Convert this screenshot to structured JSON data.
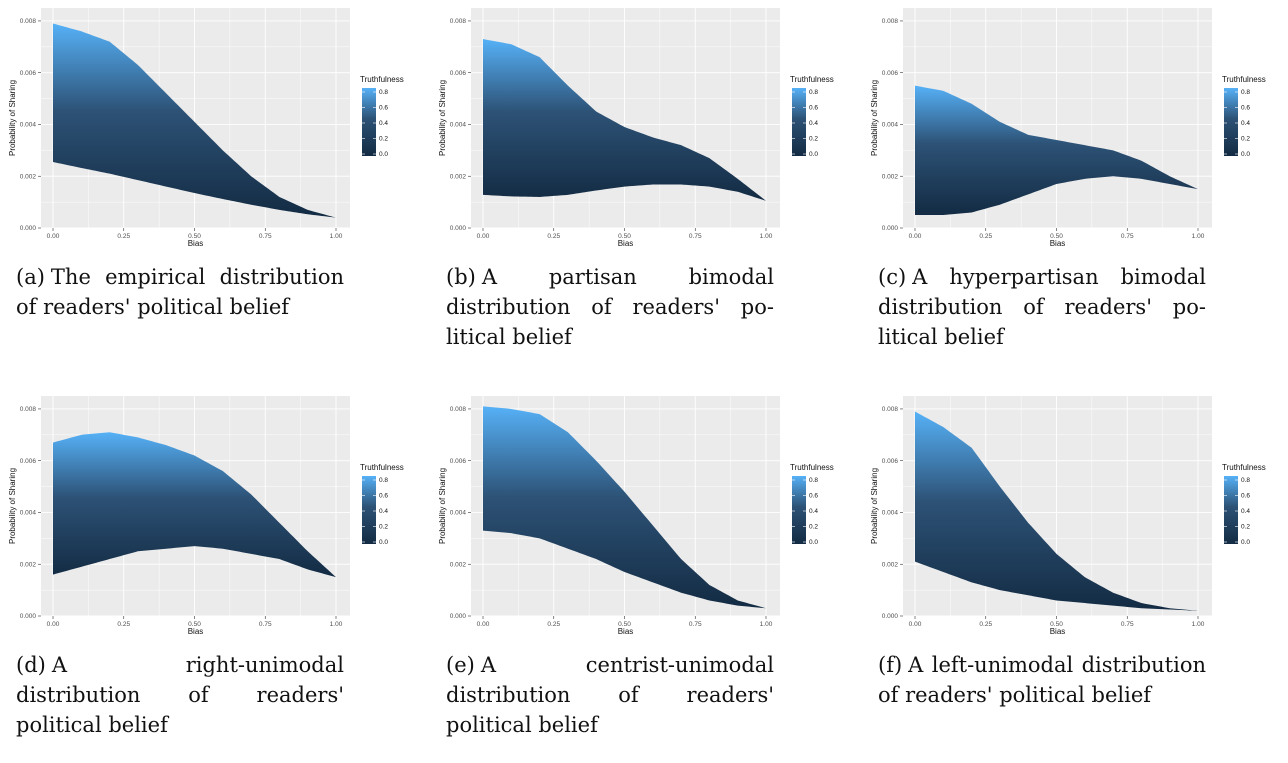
{
  "chart_data": [
    {
      "type": "area",
      "panel_label": "(a)",
      "caption": "The empirical distribution of readers' political belief",
      "xlabel": "Bias",
      "ylabel": "Probability of Sharing",
      "xlim": [
        0,
        1
      ],
      "ylim": [
        0,
        0.0085
      ],
      "x_ticks": [
        "0.00",
        "0.25",
        "0.50",
        "0.75",
        "1.00"
      ],
      "y_ticks": [
        "0.000",
        "0.002",
        "0.004",
        "0.006",
        "0.008"
      ],
      "x": [
        0,
        0.1,
        0.2,
        0.3,
        0.4,
        0.5,
        0.6,
        0.7,
        0.8,
        0.9,
        1.0
      ],
      "upper": [
        0.0079,
        0.0076,
        0.0072,
        0.0063,
        0.0052,
        0.0041,
        0.003,
        0.002,
        0.0012,
        0.0007,
        0.0004
      ],
      "lower": [
        0.00255,
        0.00232,
        0.0021,
        0.00185,
        0.0016,
        0.00135,
        0.00112,
        0.0009,
        0.0007,
        0.00053,
        0.0004
      ],
      "legend": {
        "title": "Truthfulness",
        "ticks": [
          "0.0",
          "0.2",
          "0.4",
          "0.6",
          "0.8"
        ],
        "position": "right"
      },
      "grid": true
    },
    {
      "type": "area",
      "panel_label": "(b)",
      "caption": "A partisan bimodal distribution of readers' po-litical belief",
      "xlabel": "Bias",
      "ylabel": "Probability of Sharing",
      "xlim": [
        0,
        1
      ],
      "ylim": [
        0,
        0.0085
      ],
      "x_ticks": [
        "0.00",
        "0.25",
        "0.50",
        "0.75",
        "1.00"
      ],
      "y_ticks": [
        "0.000",
        "0.002",
        "0.004",
        "0.006",
        "0.008"
      ],
      "x": [
        0,
        0.1,
        0.2,
        0.3,
        0.4,
        0.5,
        0.6,
        0.7,
        0.8,
        0.9,
        1.0
      ],
      "upper": [
        0.0073,
        0.0071,
        0.0066,
        0.0055,
        0.0045,
        0.0039,
        0.0035,
        0.0032,
        0.0027,
        0.0019,
        0.00105
      ],
      "lower": [
        0.00128,
        0.00122,
        0.0012,
        0.00128,
        0.00145,
        0.0016,
        0.00168,
        0.00168,
        0.0016,
        0.0014,
        0.00105
      ],
      "legend": {
        "title": "Truthfulness",
        "ticks": [
          "0.0",
          "0.2",
          "0.4",
          "0.6",
          "0.8"
        ],
        "position": "right"
      },
      "grid": true
    },
    {
      "type": "area",
      "panel_label": "(c)",
      "caption": "A hyperpartisan bimodal distribution of readers' po-litical belief",
      "xlabel": "Bias",
      "ylabel": "Probability of Sharing",
      "xlim": [
        0,
        1
      ],
      "ylim": [
        0,
        0.0085
      ],
      "x_ticks": [
        "0.00",
        "0.25",
        "0.50",
        "0.75",
        "1.00"
      ],
      "y_ticks": [
        "0.000",
        "0.002",
        "0.004",
        "0.006",
        "0.008"
      ],
      "x": [
        0,
        0.1,
        0.2,
        0.3,
        0.4,
        0.5,
        0.6,
        0.7,
        0.8,
        0.9,
        1.0
      ],
      "upper": [
        0.0055,
        0.0053,
        0.0048,
        0.0041,
        0.0036,
        0.0034,
        0.0032,
        0.003,
        0.0026,
        0.002,
        0.0015
      ],
      "lower": [
        0.0005,
        0.0005,
        0.0006,
        0.0009,
        0.0013,
        0.0017,
        0.0019,
        0.002,
        0.0019,
        0.0017,
        0.0015
      ],
      "legend": {
        "title": "Truthfulness",
        "ticks": [
          "0.0",
          "0.2",
          "0.4",
          "0.6",
          "0.8"
        ],
        "position": "right"
      },
      "grid": true
    },
    {
      "type": "area",
      "panel_label": "(d)",
      "caption": "A right-unimodal distribution of readers' political belief",
      "xlabel": "Bias",
      "ylabel": "Probability of Sharing",
      "xlim": [
        0,
        1
      ],
      "ylim": [
        0,
        0.0085
      ],
      "x_ticks": [
        "0.00",
        "0.25",
        "0.50",
        "0.75",
        "1.00"
      ],
      "y_ticks": [
        "0.000",
        "0.002",
        "0.004",
        "0.006",
        "0.008"
      ],
      "x": [
        0,
        0.1,
        0.2,
        0.3,
        0.4,
        0.5,
        0.6,
        0.7,
        0.8,
        0.9,
        1.0
      ],
      "upper": [
        0.0067,
        0.007,
        0.0071,
        0.0069,
        0.0066,
        0.0062,
        0.0056,
        0.0047,
        0.0036,
        0.0025,
        0.0015
      ],
      "lower": [
        0.0016,
        0.0019,
        0.0022,
        0.0025,
        0.0026,
        0.0027,
        0.0026,
        0.0024,
        0.0022,
        0.0018,
        0.0015
      ],
      "legend": {
        "title": "Truthfulness",
        "ticks": [
          "0.0",
          "0.2",
          "0.4",
          "0.6",
          "0.8"
        ],
        "position": "right"
      },
      "grid": true
    },
    {
      "type": "area",
      "panel_label": "(e)",
      "caption": "A centrist-unimodal distribution of readers' political belief",
      "xlabel": "Bias",
      "ylabel": "Probability of Sharing",
      "xlim": [
        0,
        1
      ],
      "ylim": [
        0,
        0.0085
      ],
      "x_ticks": [
        "0.00",
        "0.25",
        "0.50",
        "0.75",
        "1.00"
      ],
      "y_ticks": [
        "0.000",
        "0.002",
        "0.004",
        "0.006",
        "0.008"
      ],
      "x": [
        0,
        0.1,
        0.2,
        0.3,
        0.4,
        0.5,
        0.6,
        0.7,
        0.8,
        0.9,
        1.0
      ],
      "upper": [
        0.0081,
        0.008,
        0.0078,
        0.0071,
        0.006,
        0.0048,
        0.0035,
        0.0022,
        0.0012,
        0.0006,
        0.0003
      ],
      "lower": [
        0.0033,
        0.0032,
        0.003,
        0.0026,
        0.0022,
        0.0017,
        0.0013,
        0.0009,
        0.0006,
        0.0004,
        0.0003
      ],
      "legend": {
        "title": "Truthfulness",
        "ticks": [
          "0.0",
          "0.2",
          "0.4",
          "0.6",
          "0.8"
        ],
        "position": "right"
      },
      "grid": true
    },
    {
      "type": "area",
      "panel_label": "(f)",
      "caption": "A left-unimodal distribution of readers' political belief",
      "xlabel": "Bias",
      "ylabel": "Probability of Sharing",
      "xlim": [
        0,
        1
      ],
      "ylim": [
        0,
        0.0085
      ],
      "x_ticks": [
        "0.00",
        "0.25",
        "0.50",
        "0.75",
        "1.00"
      ],
      "y_ticks": [
        "0.000",
        "0.002",
        "0.004",
        "0.006",
        "0.008"
      ],
      "x": [
        0,
        0.1,
        0.2,
        0.3,
        0.4,
        0.5,
        0.6,
        0.7,
        0.8,
        0.9,
        1.0
      ],
      "upper": [
        0.0079,
        0.0073,
        0.0065,
        0.005,
        0.0036,
        0.0024,
        0.0015,
        0.0009,
        0.0005,
        0.0003,
        0.0002
      ],
      "lower": [
        0.0021,
        0.0017,
        0.0013,
        0.001,
        0.0008,
        0.0006,
        0.0005,
        0.0004,
        0.0003,
        0.00025,
        0.0002
      ],
      "legend": {
        "title": "Truthfulness",
        "ticks": [
          "0.0",
          "0.2",
          "0.4",
          "0.6",
          "0.8"
        ],
        "position": "right"
      },
      "grid": true
    }
  ],
  "colors": {
    "panel_bg": "#ebebeb",
    "grid": "#ffffff",
    "low": "#132b43",
    "high": "#56b1f7"
  }
}
